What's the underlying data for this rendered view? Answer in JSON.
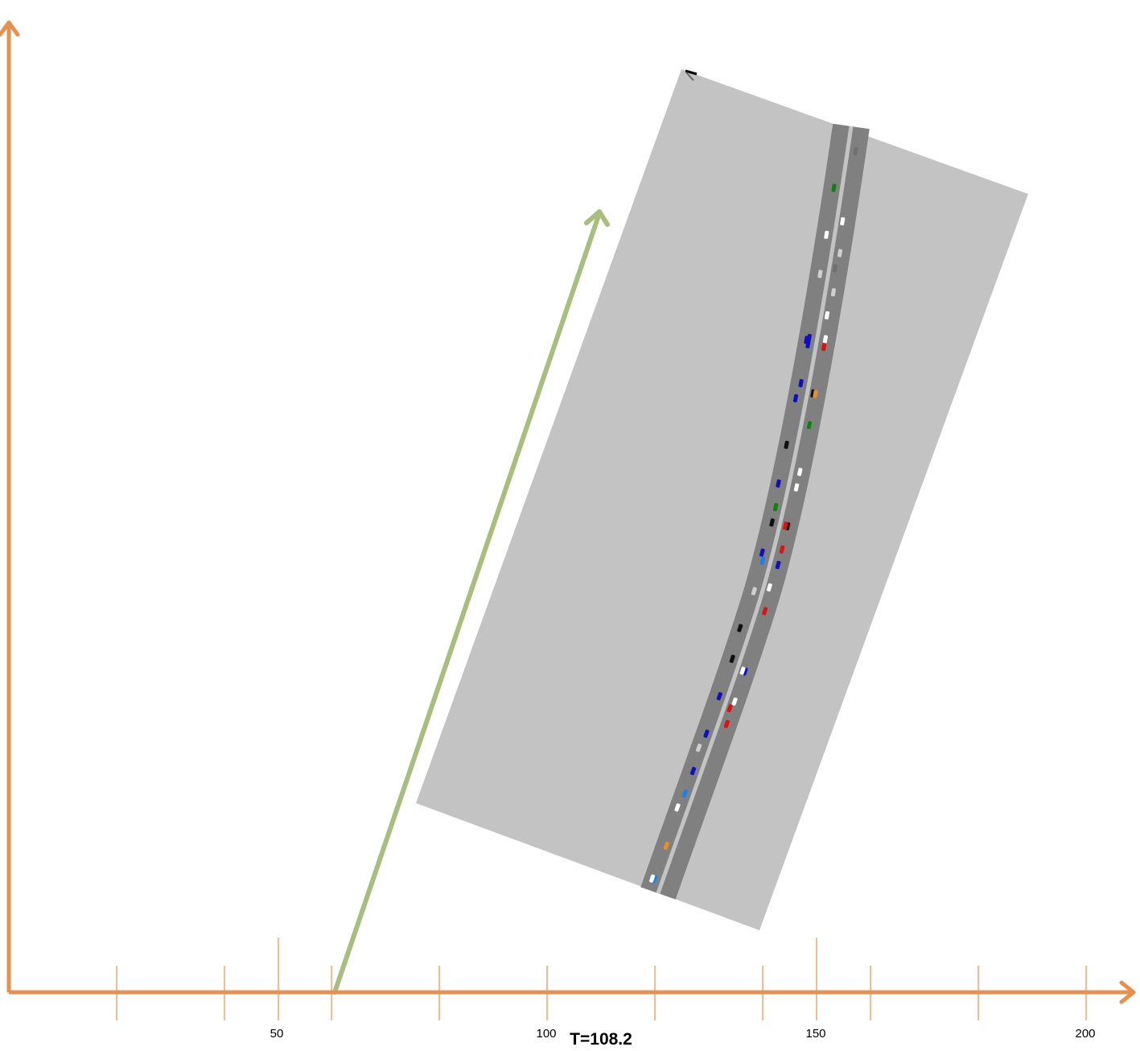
{
  "axes": {
    "color": "#E8904E",
    "x_tick_labels": [
      "50",
      "100",
      "150",
      "200"
    ]
  },
  "time_label": "T=108.2",
  "direction_arrow": {
    "color": "#A8BE7C"
  },
  "scene": {
    "ground_color": "#C3C3C3",
    "road_color": "#808080",
    "lane_divider_color": "#C3C3C3"
  },
  "vehicle_colors": {
    "white": "#FFFFFF",
    "light": "#D0D0D0",
    "gray": "#707070",
    "black": "#101010",
    "red": "#E01010",
    "blue": "#1010C0",
    "lightblue": "#1E7FE8",
    "green": "#108010",
    "orange": "#E89020"
  }
}
